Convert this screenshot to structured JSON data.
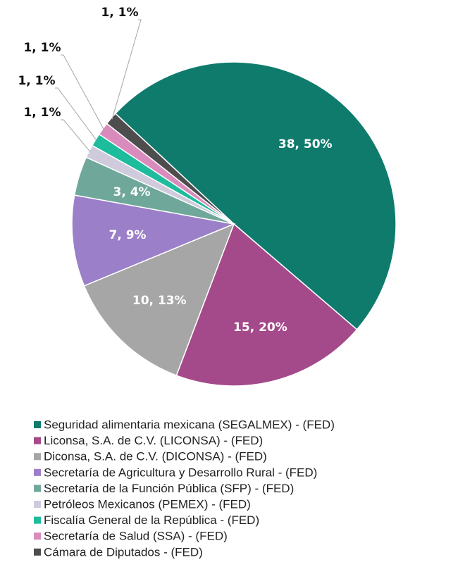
{
  "chart_data": {
    "type": "pie",
    "categories": [
      "Seguridad alimentaria mexicana (SEGALMEX) - (FED)",
      "Liconsa, S.A. de C.V. (LICONSA) - (FED)",
      "Diconsa, S.A. de C.V. (DICONSA) - (FED)",
      "Secretaría de Agricultura y Desarrollo Rural - (FED)",
      "Secretaría de la Función Pública (SFP) - (FED)",
      "Petróleos Mexicanos (PEMEX) - (FED)",
      "Fiscalía General de la República - (FED)",
      "Secretaría de Salud (SSA) - (FED)",
      "Cámara de Diputados - (FED)"
    ],
    "values": [
      38,
      15,
      10,
      7,
      3,
      1,
      1,
      1,
      1
    ],
    "value_labels": [
      "38, 50%",
      "15, 20%",
      "10, 13%",
      "7, 9%",
      "3, 4%",
      "1, 1%",
      "1, 1%",
      "1, 1%",
      "1, 1%"
    ],
    "colors": [
      "#0f7b6c",
      "#a4498a",
      "#a6a6a6",
      "#9b7fc8",
      "#6fa89a",
      "#cfcbdc",
      "#1dbc9c",
      "#d98bbd",
      "#4d4d4d"
    ],
    "legend": "bottom"
  }
}
